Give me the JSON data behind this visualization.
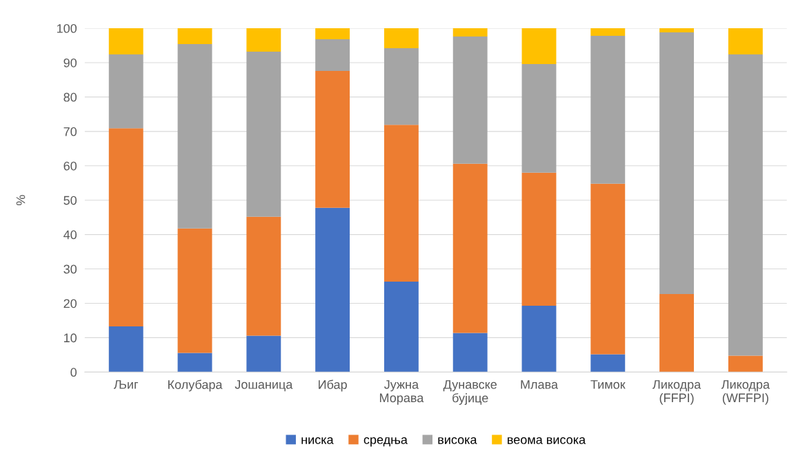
{
  "chart_data": {
    "type": "bar",
    "stacked": true,
    "ylabel": "%",
    "categories": [
      "Љиг",
      "Колубара",
      "Јошаница",
      "Ибар",
      "Јужна\nМорава",
      "Дунавске\nбујице",
      "Млава",
      "Тимок",
      "Ликодра\n(FFPI)",
      "Ликодра\n(WFFPI)"
    ],
    "series": [
      {
        "name": "ниска",
        "color": "#4472c4",
        "values": [
          13.3,
          5.6,
          10.6,
          47.8,
          26.3,
          11.4,
          19.3,
          5.2,
          0,
          0
        ]
      },
      {
        "name": "средња",
        "color": "#ed7d31",
        "values": [
          57.6,
          36.2,
          34.6,
          39.8,
          45.6,
          49.2,
          38.7,
          49.6,
          22.7,
          4.8
        ]
      },
      {
        "name": "висока",
        "color": "#a5a5a5",
        "values": [
          21.5,
          53.6,
          48.0,
          9.2,
          22.3,
          37.0,
          31.6,
          43.0,
          76.1,
          87.6
        ]
      },
      {
        "name": "веома висока",
        "color": "#ffc000",
        "values": [
          7.6,
          4.6,
          6.8,
          3.2,
          5.8,
          2.4,
          10.4,
          2.2,
          1.2,
          7.6
        ]
      }
    ],
    "ylim": [
      0,
      100
    ],
    "yticks": [
      0,
      10,
      20,
      30,
      40,
      50,
      60,
      70,
      80,
      90,
      100
    ],
    "grid": "y",
    "legend": "bottom"
  }
}
